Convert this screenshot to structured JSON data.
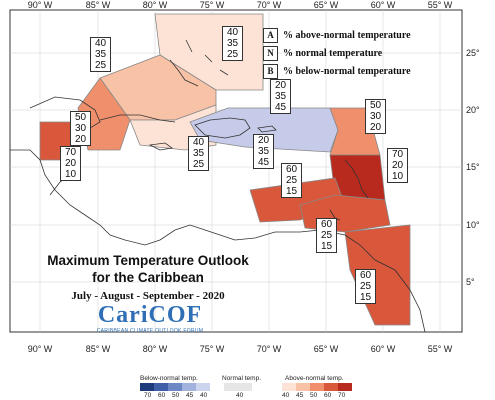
{
  "title": "Maximum Temperature Outlook\nfor the Caribbean",
  "title_line1": "Maximum Temperature Outlook",
  "title_line2": "for the Caribbean",
  "subtitle": "July - August - September - 2020",
  "logo": {
    "name": "CariCOF",
    "tagline": "CARIBBEAN CLIMATE OUTLOOK FORUM",
    "color": "#2f6fb5"
  },
  "key": [
    {
      "symbol": "A",
      "label": "% above-normal temperature"
    },
    {
      "symbol": "N",
      "label": "% normal temperature"
    },
    {
      "symbol": "B",
      "label": "% below-normal temperature"
    }
  ],
  "lon_labels": [
    "90° W",
    "85° W",
    "80° W",
    "75° W",
    "70° W",
    "65° W",
    "60° W",
    "55° W"
  ],
  "lat_labels_right": [
    "25°",
    "20°",
    "15°",
    "10°",
    "5°"
  ],
  "region_probabilities": [
    {
      "id": "bahamas",
      "A": "40",
      "N": "35",
      "B": "25"
    },
    {
      "id": "gulf-west",
      "A": "40",
      "N": "35",
      "B": "25"
    },
    {
      "id": "yucatan-belize",
      "A": "50",
      "N": "30",
      "B": "20"
    },
    {
      "id": "central-america",
      "A": "70",
      "N": "20",
      "B": "10"
    },
    {
      "id": "greater-antilles-west",
      "A": "40",
      "N": "35",
      "B": "25"
    },
    {
      "id": "hispaniola-puerto-rico-top",
      "A": "20",
      "N": "35",
      "B": "45"
    },
    {
      "id": "hispaniola-puerto-rico-bottom",
      "A": "20",
      "N": "35",
      "B": "45"
    },
    {
      "id": "northern-leewards",
      "A": "50",
      "N": "30",
      "B": "20"
    },
    {
      "id": "leeward-windward",
      "A": "70",
      "N": "20",
      "B": "10"
    },
    {
      "id": "caribbean-sea-south",
      "A": "60",
      "N": "25",
      "B": "15"
    },
    {
      "id": "south-caribbean",
      "A": "60",
      "N": "25",
      "B": "15"
    },
    {
      "id": "guianas",
      "A": "60",
      "N": "25",
      "B": "15"
    }
  ],
  "color_scale": {
    "below_label": "Below-normal temp.",
    "normal_label": "Normal temp.",
    "above_label": "Above-normal temp.",
    "below_values": [
      "70",
      "60",
      "50",
      "45",
      "40"
    ],
    "normal_values": [
      "40"
    ],
    "above_values": [
      "40",
      "45",
      "50",
      "60",
      "70"
    ],
    "below_colors": [
      "#1d3b7a",
      "#3e5ea8",
      "#6d86c4",
      "#a3b2dd",
      "#cdd5ee"
    ],
    "normal_color": "#e6e6e6",
    "above_colors": [
      "#fde3d6",
      "#f8c2a6",
      "#ef8f6c",
      "#d9573b",
      "#b82a1e"
    ]
  }
}
